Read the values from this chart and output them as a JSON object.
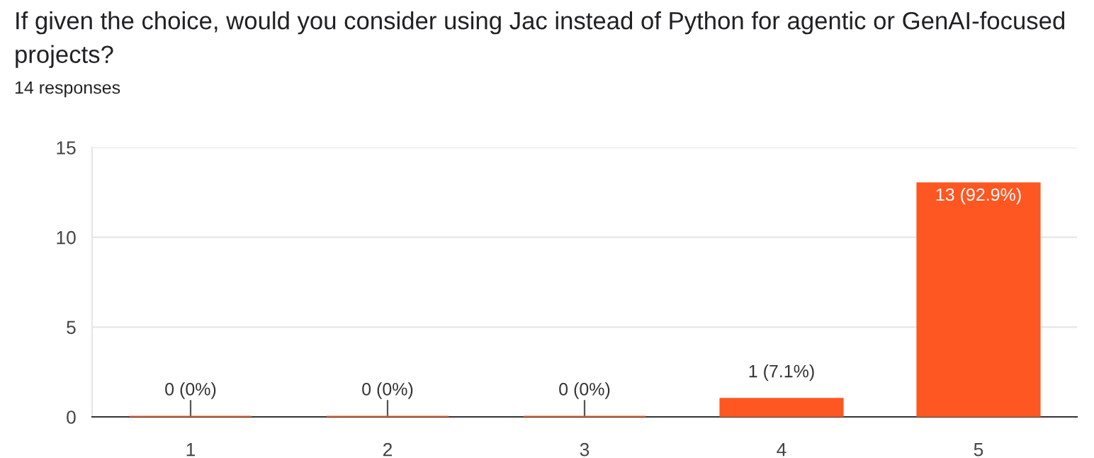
{
  "chart_data": {
    "type": "bar",
    "title": "If given the choice, would you consider using Jac instead of Python for agentic or GenAI-focused projects?",
    "subtitle": "14 responses",
    "categories": [
      "1",
      "2",
      "3",
      "4",
      "5"
    ],
    "values": [
      0,
      0,
      0,
      1,
      13
    ],
    "color": "#ff5722",
    "value_labels": [
      "0 (0%)",
      "0 (0%)",
      "0 (0%)",
      "1 (7.1%)",
      "13 (92.9%)"
    ],
    "ylim": [
      0,
      15
    ],
    "yticks": [
      0,
      5,
      10,
      15
    ],
    "grid": "y",
    "legend": false
  }
}
